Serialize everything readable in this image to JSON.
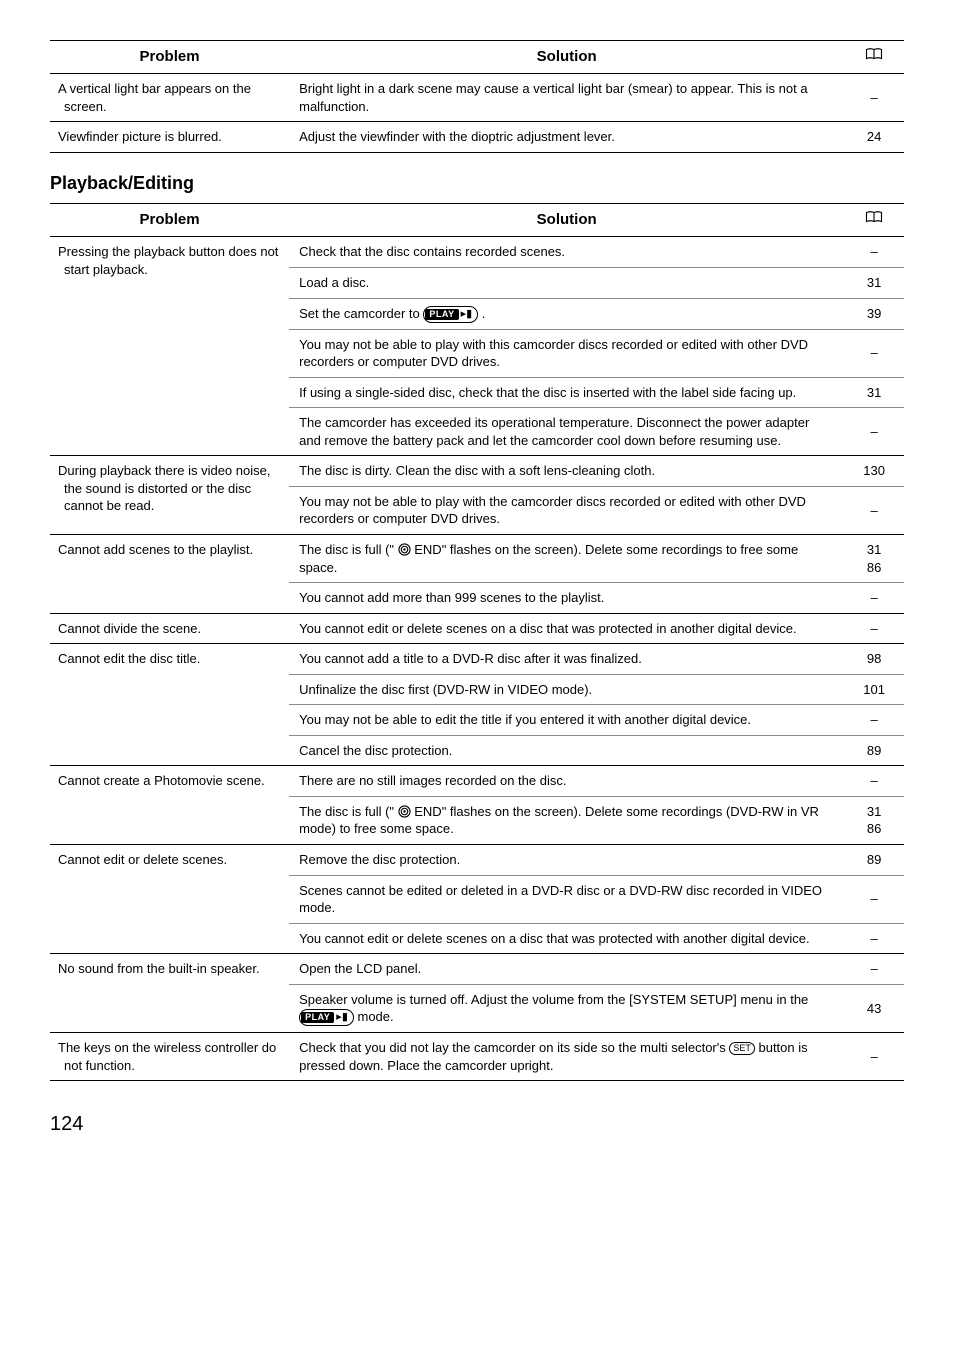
{
  "table1": {
    "headers": {
      "problem": "Problem",
      "solution": "Solution"
    },
    "rows": [
      {
        "problem": "A vertical light bar appears on the screen.",
        "solution": "Bright light in a dark scene may cause a vertical light bar (smear) to appear. This is not a malfunction.",
        "page": "–"
      },
      {
        "problem": "Viewfinder picture is blurred.",
        "solution": "Adjust the viewfinder with the dioptric adjustment lever.",
        "page": "24"
      }
    ]
  },
  "section_title": "Playback/Editing",
  "table2": {
    "headers": {
      "problem": "Problem",
      "solution": "Solution"
    },
    "groups": [
      {
        "problem": "Pressing the playback button does not start playback.",
        "solutions": [
          {
            "text": "Check that the disc contains recorded scenes.",
            "page": "–"
          },
          {
            "text": "Load a disc.",
            "page": "31"
          },
          {
            "text_pre": "Set the camcorder to ",
            "pill_label": "PLAY",
            "text_post": " .",
            "page": "39"
          },
          {
            "text": "You may not be able to play with this camcorder discs recorded or edited with other DVD recorders or computer DVD drives.",
            "page": "–"
          },
          {
            "text": "If using a single-sided disc, check that the disc is inserted with the label side facing up.",
            "page": "31"
          },
          {
            "text": "The camcorder has exceeded its operational temperature. Disconnect the power adapter and remove the battery pack and let the camcorder cool down before resuming use.",
            "page": "–"
          }
        ]
      },
      {
        "problem": "During playback there is video noise, the sound is distorted or the disc cannot be read.",
        "solutions": [
          {
            "text": "The disc is dirty. Clean the disc with a soft lens-cleaning cloth.",
            "page": "130"
          },
          {
            "text": "You may not be able to play with the camcorder discs recorded or edited with other DVD recorders or computer DVD drives.",
            "page": "–"
          }
        ]
      },
      {
        "problem": "Cannot add scenes to the playlist.",
        "solutions": [
          {
            "text_pre": "The disc is full (\" ",
            "disc": true,
            "text_post": " END\" flashes on the screen). Delete some recordings to free some space.",
            "page": "31\n86"
          },
          {
            "text": "You cannot add more than 999 scenes to the playlist.",
            "page": "–"
          }
        ]
      },
      {
        "problem": "Cannot divide the scene.",
        "solutions": [
          {
            "text": "You cannot edit or delete scenes on a disc that was protected in another digital device.",
            "page": "–"
          }
        ]
      },
      {
        "problem": "Cannot edit the disc title.",
        "solutions": [
          {
            "text": "You cannot add a title to a DVD-R disc after it was finalized.",
            "page": "98"
          },
          {
            "text": "Unfinalize the disc first (DVD-RW in VIDEO mode).",
            "page": "101"
          },
          {
            "text": "You may not be able to edit the title if you entered it with another digital device.",
            "page": "–"
          },
          {
            "text": "Cancel the disc protection.",
            "page": "89"
          }
        ]
      },
      {
        "problem": "Cannot create a Photomovie scene.",
        "solutions": [
          {
            "text": "There are no still images recorded on the disc.",
            "page": "–"
          },
          {
            "text_pre": "The disc is full (\" ",
            "disc": true,
            "text_post": " END\" flashes on the screen). Delete some recordings (DVD-RW in VR mode) to free some space.",
            "page": "31\n86"
          }
        ]
      },
      {
        "problem": "Cannot edit or delete scenes.",
        "solutions": [
          {
            "text": "Remove the disc protection.",
            "page": "89"
          },
          {
            "text": "Scenes cannot be edited or deleted in a DVD-R disc or a DVD-RW disc recorded in VIDEO mode.",
            "page": "–"
          },
          {
            "text": "You cannot edit or delete scenes on a disc that was protected with another digital device.",
            "page": "–"
          }
        ]
      },
      {
        "problem": "No sound from the built-in speaker.",
        "solutions": [
          {
            "text": "Open the LCD panel.",
            "page": "–"
          },
          {
            "text_pre": "Speaker volume is turned off. Adjust the volume from the [SYSTEM SETUP] menu in the ",
            "pill_label": "PLAY",
            "text_post": "  mode.",
            "page": "43"
          }
        ]
      },
      {
        "problem": "The keys on the wireless controller do not function.",
        "solutions": [
          {
            "text_pre": "Check that you did not lay the camcorder on its side so the multi selector's ",
            "set": "SET",
            "text_post": " button is pressed down. Place the camcorder upright.",
            "page": "–"
          }
        ]
      }
    ]
  },
  "page_number": "124"
}
